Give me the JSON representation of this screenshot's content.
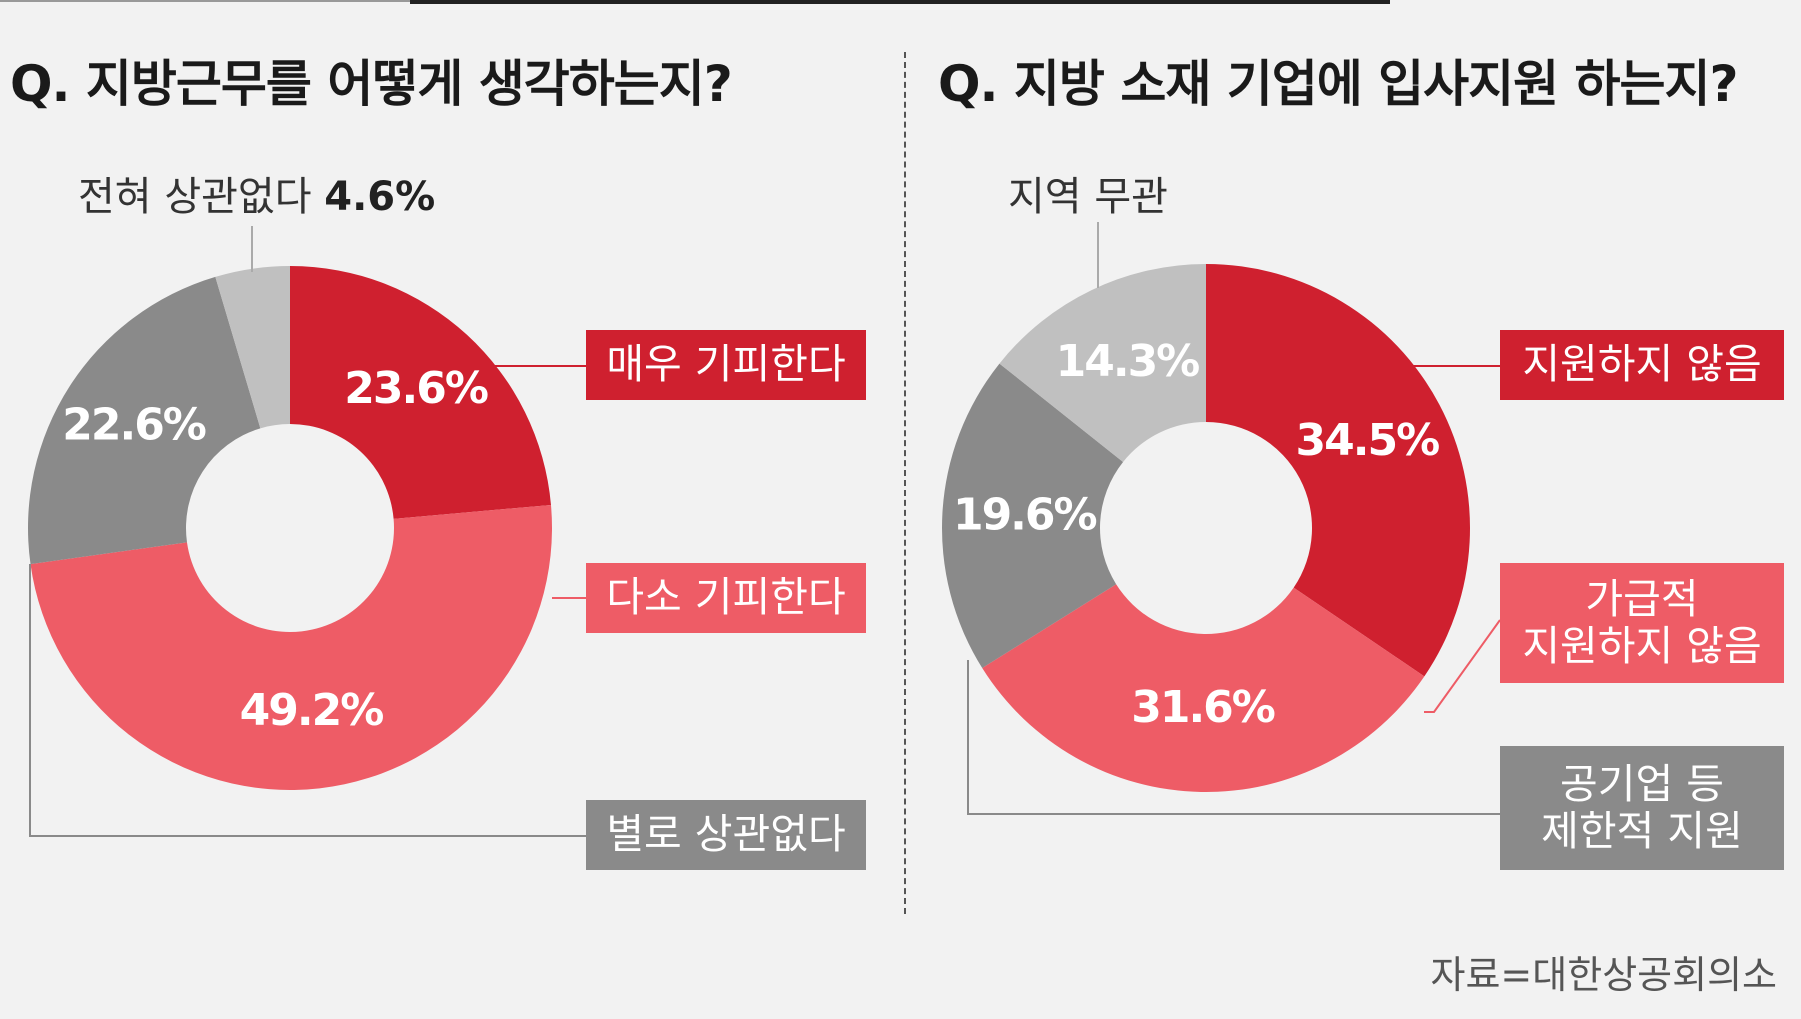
{
  "source": "자료=대한상공회의소",
  "colors": {
    "dark_red": "#cf202f",
    "light_red": "#ee5c66",
    "dark_gray": "#8a8a8a",
    "light_gray": "#c0c0c0"
  },
  "chart_data": [
    {
      "type": "pie",
      "subtype": "donut",
      "title": "Q. 지방근무를 어떻게 생각하는지?",
      "categories": [
        "매우 기피한다",
        "다소 기피한다",
        "별로 상관없다",
        "전혀 상관없다"
      ],
      "values": [
        23.6,
        49.2,
        22.6,
        4.6
      ],
      "value_labels": [
        "23.6%",
        "49.2%",
        "22.6%",
        "4.6%"
      ],
      "colors": [
        "#cf202f",
        "#ee5c66",
        "#8a8a8a",
        "#c0c0c0"
      ],
      "legend": {
        "very_avoid": "매우 기피한다",
        "somewhat_avoid": "다소 기피한다",
        "not_really": "별로 상관없다",
        "not_at_all": "전혀 상관없다",
        "not_at_all_value": "4.6%"
      }
    },
    {
      "type": "pie",
      "subtype": "donut",
      "title": "Q. 지방 소재 기업에 입사지원 하는지?",
      "categories": [
        "지원하지 않음",
        "가급적 지원하지 않음",
        "공기업 등 제한적 지원",
        "지역 무관"
      ],
      "values": [
        34.5,
        31.6,
        19.6,
        14.3
      ],
      "value_labels": [
        "34.5%",
        "31.6%",
        "19.6%",
        "14.3%"
      ],
      "colors": [
        "#cf202f",
        "#ee5c66",
        "#8a8a8a",
        "#c0c0c0"
      ],
      "legend": {
        "no_apply": "지원하지 않음",
        "prefer_not_1": "가급적",
        "prefer_not_2": "지원하지 않음",
        "limited_1": "공기업 등",
        "limited_2": "제한적 지원",
        "any_region": "지역 무관"
      }
    }
  ]
}
